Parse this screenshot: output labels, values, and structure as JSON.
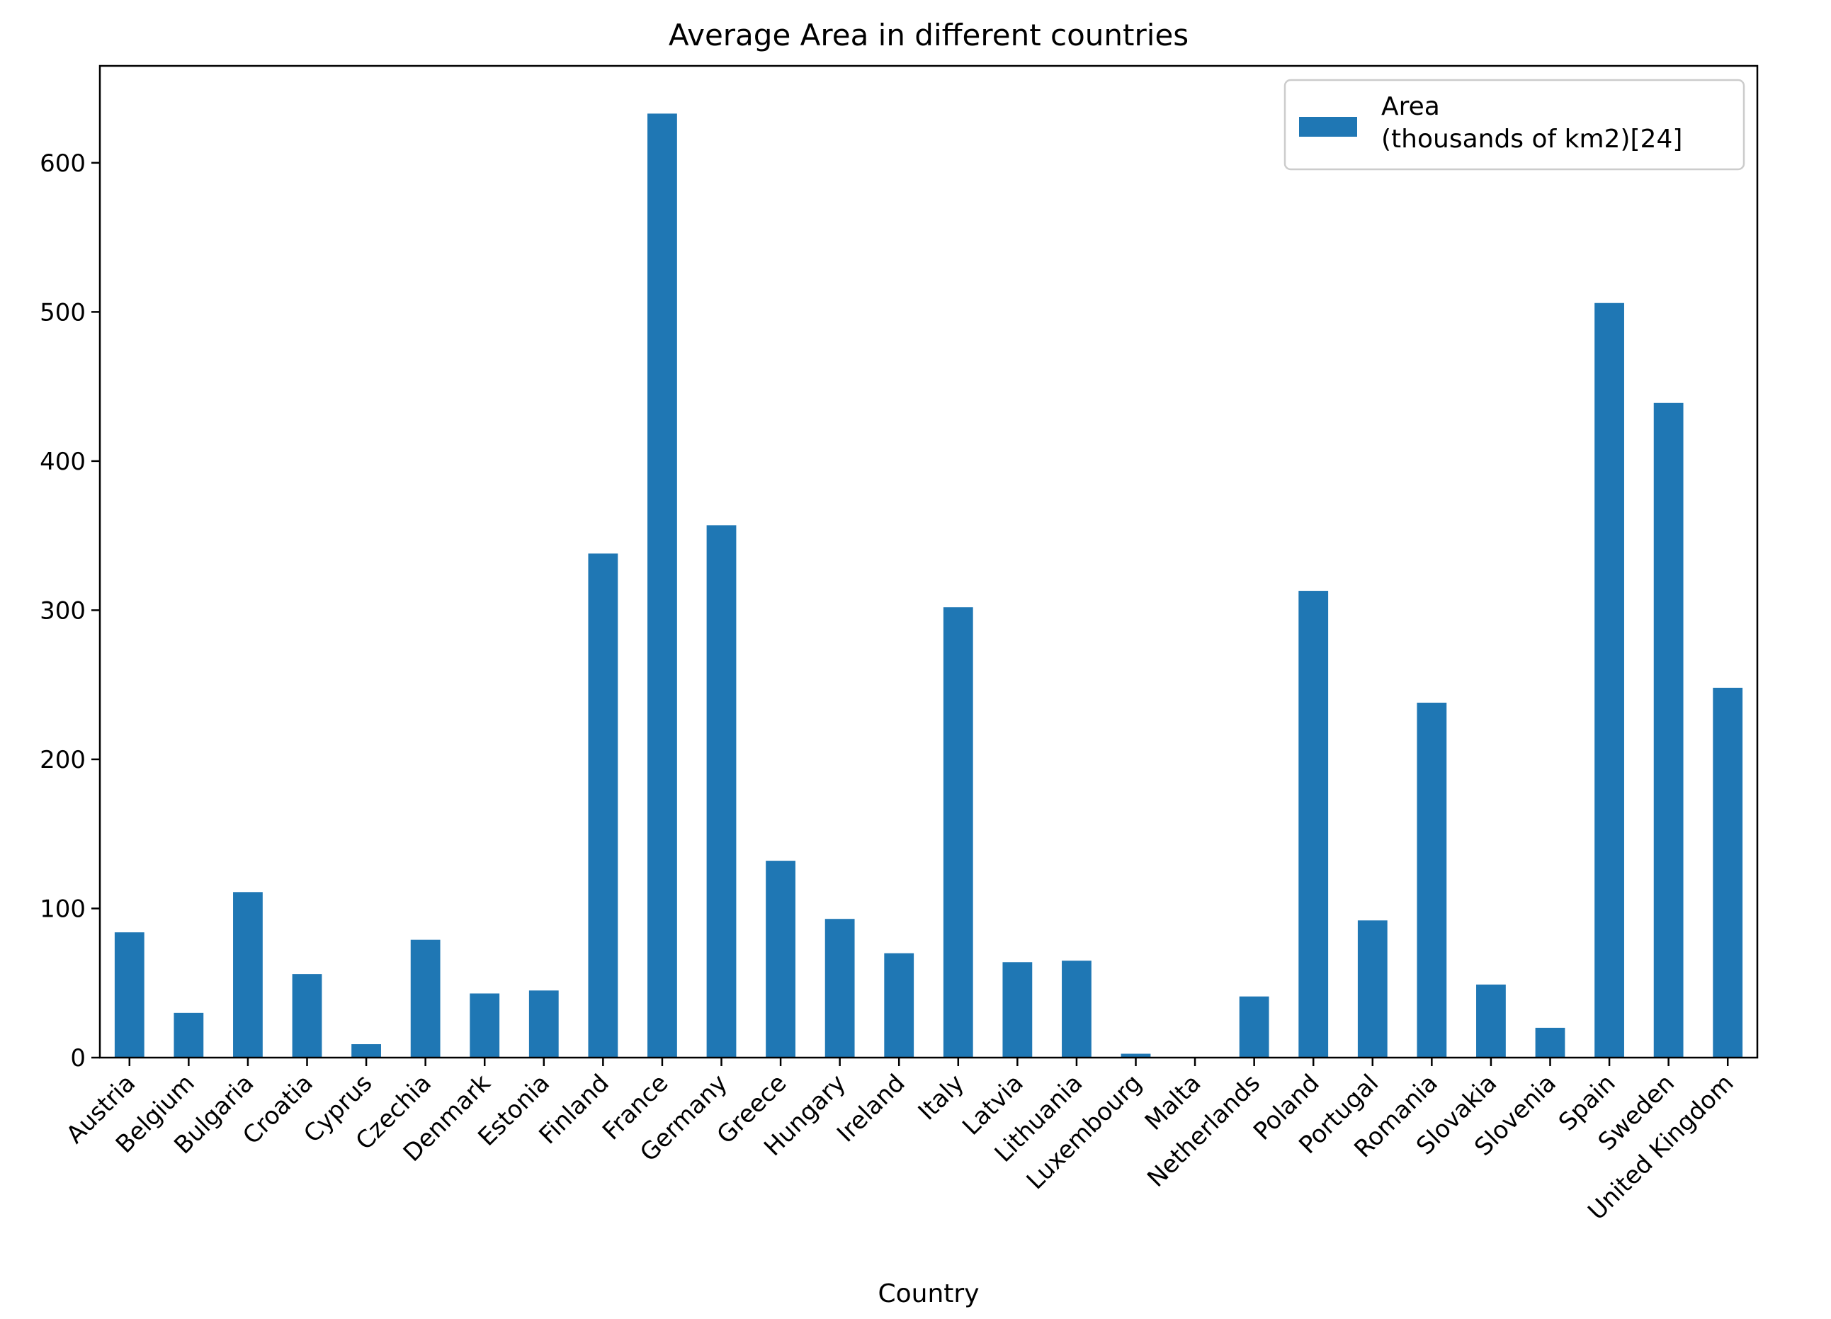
{
  "chart_data": {
    "type": "bar",
    "title": "Average Area in different countries",
    "xlabel": "Country",
    "ylabel": "",
    "ylim": [
      0,
      665
    ],
    "yticks": [
      0,
      100,
      200,
      300,
      400,
      500,
      600
    ],
    "grid": false,
    "legend_position": "top-right",
    "bar_color": "#1f77b4",
    "categories": [
      "Austria",
      "Belgium",
      "Bulgaria",
      "Croatia",
      "Cyprus",
      "Czechia",
      "Denmark",
      "Estonia",
      "Finland",
      "France",
      "Germany",
      "Greece",
      "Hungary",
      "Ireland",
      "Italy",
      "Latvia",
      "Lithuania",
      "Luxembourg",
      "Malta",
      "Netherlands",
      "Poland",
      "Portugal",
      "Romania",
      "Slovakia",
      "Slovenia",
      "Spain",
      "Sweden",
      "United Kingdom"
    ],
    "series": [
      {
        "name": "Area\n(thousands of km2)[24]",
        "values": [
          84,
          30,
          111,
          56,
          9,
          79,
          43,
          45,
          338,
          633,
          357,
          132,
          93,
          70,
          302,
          64,
          65,
          2.6,
          0.3,
          41,
          313,
          92,
          238,
          49,
          20,
          506,
          439,
          248
        ]
      }
    ]
  }
}
